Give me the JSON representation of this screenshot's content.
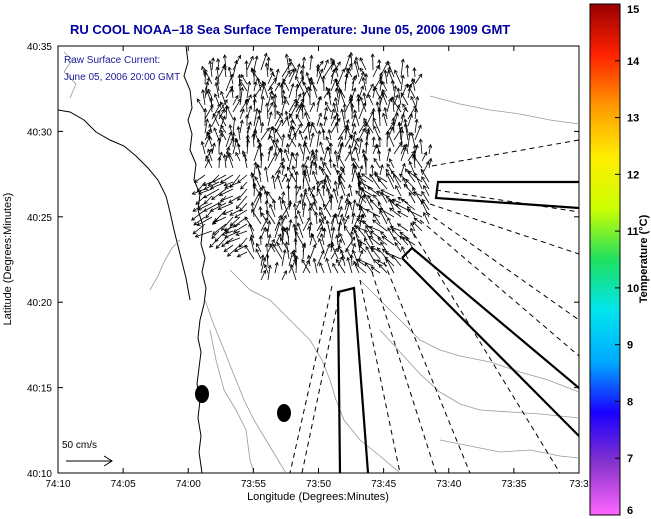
{
  "title": "RU COOL  NOAA–18  Sea Surface Temperature:  June 05, 2006 1909 GMT",
  "inset": {
    "line1": "Raw Surface Current:",
    "line2": "June 05, 2006 20:00 GMT"
  },
  "scale": {
    "label": "50 cm/s"
  },
  "axes": {
    "xlabel": "Longitude (Degrees:Minutes)",
    "ylabel": "Latitude (Degrees:Minutes)",
    "xticks": [
      "74:10",
      "74:05",
      "74:00",
      "73:55",
      "73:50",
      "73:45",
      "73:40",
      "73:35",
      "73:3"
    ],
    "yticks": [
      "40:35",
      "40:30",
      "40:25",
      "40:20",
      "40:15",
      "40:10"
    ]
  },
  "colorbar": {
    "title": "Temperature (°C)",
    "ticks": [
      "15",
      "14",
      "13",
      "12",
      "11",
      "10",
      "9",
      "8",
      "7",
      "6"
    ],
    "range": [
      6,
      15
    ],
    "colors": [
      "#ff66ff",
      "#8833cc",
      "#1a00ff",
      "#00aaff",
      "#00e5ee",
      "#20e060",
      "#ccff00",
      "#ffee00",
      "#ff9900",
      "#ff2200",
      "#990000"
    ]
  },
  "markers": {
    "color": "#000000"
  }
}
